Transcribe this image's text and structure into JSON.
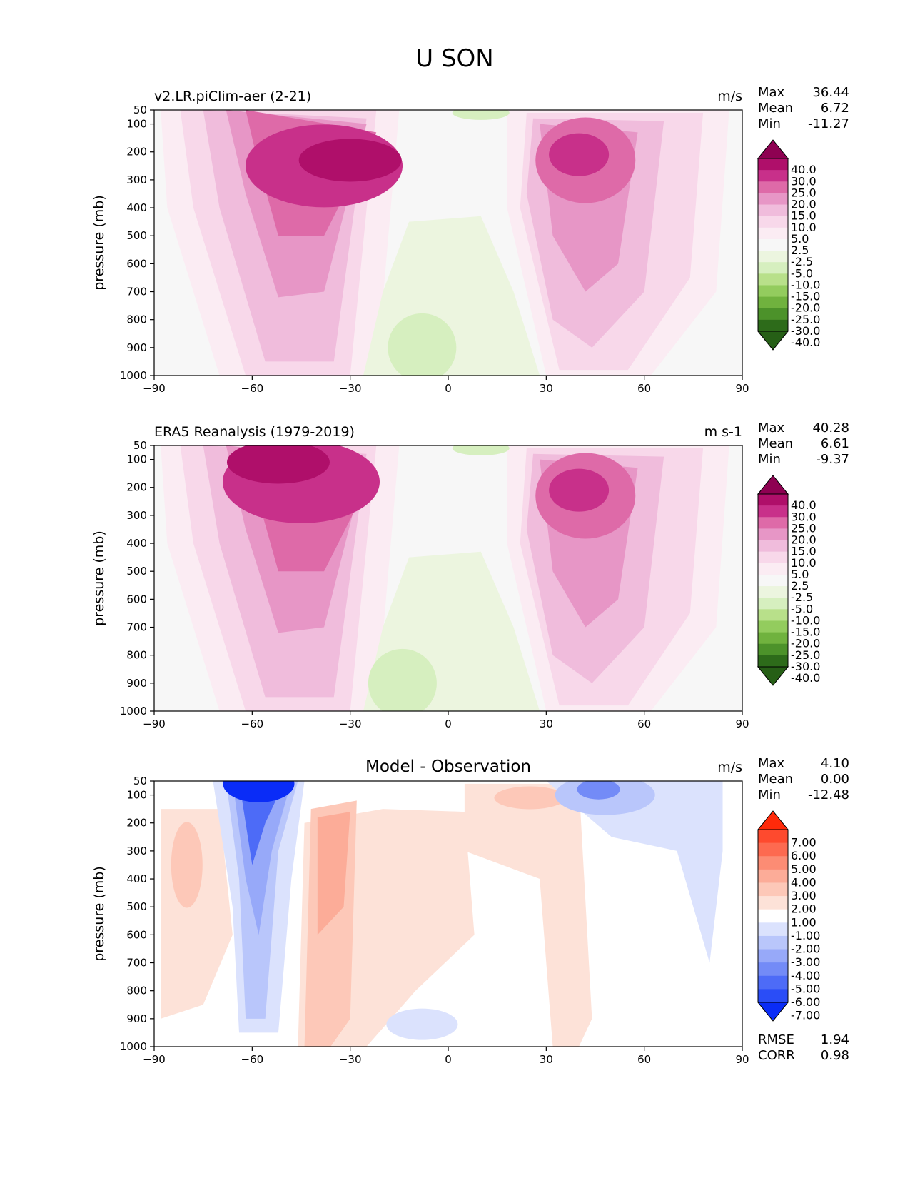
{
  "figure": {
    "title": "U SON"
  },
  "chart_data": [
    {
      "type": "heatmap",
      "panel": "test",
      "title": "v2.LR.piClim-aer (2-21)",
      "units": "m/s",
      "xlabel": "",
      "ylabel": "pressure (mb)",
      "xlim": [
        -90,
        90
      ],
      "ylim": [
        1000,
        50
      ],
      "xticks": [
        "−90",
        "−60",
        "−30",
        "0",
        "30",
        "60",
        "90"
      ],
      "xtick_values": [
        -90,
        -60,
        -30,
        0,
        30,
        60,
        90
      ],
      "yticks": [
        "50",
        "100",
        "200",
        "300",
        "400",
        "500",
        "600",
        "700",
        "800",
        "900",
        "1000"
      ],
      "ytick_values": [
        50,
        100,
        200,
        300,
        400,
        500,
        600,
        700,
        800,
        900,
        1000
      ],
      "stats": [
        {
          "label": "Max",
          "value": "36.44"
        },
        {
          "label": "Mean",
          "value": "6.72"
        },
        {
          "label": "Min",
          "value": "-11.27"
        }
      ],
      "colorbar": {
        "levels": [
          "40.0",
          "30.0",
          "25.0",
          "20.0",
          "15.0",
          "10.0",
          "5.0",
          "2.5",
          "-2.5",
          "-5.0",
          "-10.0",
          "-15.0",
          "-20.0",
          "-25.0",
          "-30.0",
          "-40.0"
        ],
        "colors": [
          "#8e0152",
          "#af0f6a",
          "#c8308a",
          "#de6aa8",
          "#e796c6",
          "#f0bcdc",
          "#f8d8ea",
          "#fbecf3",
          "#f7f7f7",
          "#ecf5df",
          "#d6efbf",
          "#b8e08a",
          "#93cc5e",
          "#70b23e",
          "#4c922a",
          "#2d6b1a",
          "#265f16"
        ]
      },
      "features": [
        {
          "lat": -30,
          "p": 230,
          "value": 36.44
        },
        {
          "lat": 40,
          "p": 220,
          "value": 31
        },
        {
          "lat": -7,
          "p": 900,
          "value": -11.27
        }
      ]
    },
    {
      "type": "heatmap",
      "panel": "reference",
      "title": "ERA5 Reanalysis (1979-2019)",
      "units": "m s-1",
      "xlabel": "",
      "ylabel": "pressure (mb)",
      "xlim": [
        -90,
        90
      ],
      "ylim": [
        1000,
        50
      ],
      "xticks": [
        "−90",
        "−60",
        "−30",
        "0",
        "30",
        "60",
        "90"
      ],
      "xtick_values": [
        -90,
        -60,
        -30,
        0,
        30,
        60,
        90
      ],
      "yticks": [
        "50",
        "100",
        "200",
        "300",
        "400",
        "500",
        "600",
        "700",
        "800",
        "900",
        "1000"
      ],
      "ytick_values": [
        50,
        100,
        200,
        300,
        400,
        500,
        600,
        700,
        800,
        900,
        1000
      ],
      "stats": [
        {
          "label": "Max",
          "value": "40.28"
        },
        {
          "label": "Mean",
          "value": "6.61"
        },
        {
          "label": "Min",
          "value": "-9.37"
        }
      ],
      "colorbar": {
        "levels": [
          "40.0",
          "30.0",
          "25.0",
          "20.0",
          "15.0",
          "10.0",
          "5.0",
          "2.5",
          "-2.5",
          "-5.0",
          "-10.0",
          "-15.0",
          "-20.0",
          "-25.0",
          "-30.0",
          "-40.0"
        ],
        "colors": [
          "#8e0152",
          "#af0f6a",
          "#c8308a",
          "#de6aa8",
          "#e796c6",
          "#f0bcdc",
          "#f8d8ea",
          "#fbecf3",
          "#f7f7f7",
          "#ecf5df",
          "#d6efbf",
          "#b8e08a",
          "#93cc5e",
          "#70b23e",
          "#4c922a",
          "#2d6b1a",
          "#265f16"
        ]
      },
      "features": [
        {
          "lat": -55,
          "p": 100,
          "value": 40.28
        },
        {
          "lat": -30,
          "p": 200,
          "value": 33
        },
        {
          "lat": 40,
          "p": 200,
          "value": 27
        },
        {
          "lat": -15,
          "p": 900,
          "value": -9.37
        }
      ]
    },
    {
      "type": "heatmap",
      "panel": "difference",
      "title": "Model - Observation",
      "units": "m/s",
      "xlabel": "",
      "ylabel": "pressure (mb)",
      "xlim": [
        -90,
        90
      ],
      "ylim": [
        1000,
        50
      ],
      "xticks": [
        "−90",
        "−60",
        "−30",
        "0",
        "30",
        "60",
        "90"
      ],
      "xtick_values": [
        -90,
        -60,
        -30,
        0,
        30,
        60,
        90
      ],
      "yticks": [
        "50",
        "100",
        "200",
        "300",
        "400",
        "500",
        "600",
        "700",
        "800",
        "900",
        "1000"
      ],
      "ytick_values": [
        50,
        100,
        200,
        300,
        400,
        500,
        600,
        700,
        800,
        900,
        1000
      ],
      "stats": [
        {
          "label": "Max",
          "value": "4.10"
        },
        {
          "label": "Mean",
          "value": "0.00"
        },
        {
          "label": "Min",
          "value": "-12.48"
        }
      ],
      "extra_stats": [
        {
          "label": "RMSE",
          "value": "1.94"
        },
        {
          "label": "CORR",
          "value": "0.98"
        }
      ],
      "colorbar": {
        "levels": [
          "7.00",
          "6.00",
          "5.00",
          "4.00",
          "3.00",
          "2.00",
          "1.00",
          "-1.00",
          "-2.00",
          "-3.00",
          "-4.00",
          "-5.00",
          "-6.00",
          "-7.00"
        ],
        "colors": [
          "#ff2a0a",
          "#fe4a2e",
          "#fd6a50",
          "#fc8c74",
          "#fcac98",
          "#fdc8b8",
          "#fde2d8",
          "#ffffff",
          "#dbe2fd",
          "#b9c6fb",
          "#97a9f9",
          "#738bf7",
          "#4d6bf7",
          "#2a4df7",
          "#0a2cf7"
        ]
      },
      "features": [
        {
          "lat": -58,
          "p": 80,
          "value": -12.48
        },
        {
          "lat": -36,
          "p": 300,
          "value": 4.1
        },
        {
          "lat": 42,
          "p": 120,
          "value": -4.5
        }
      ]
    }
  ]
}
